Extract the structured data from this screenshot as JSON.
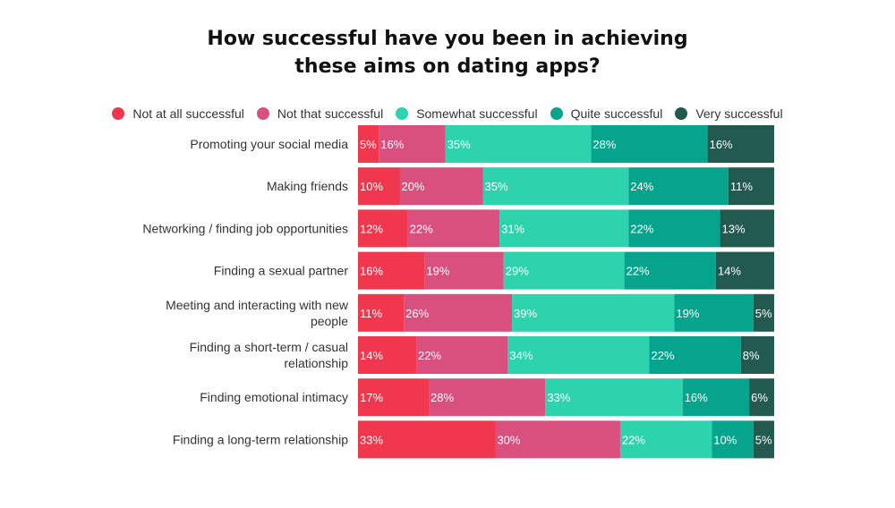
{
  "chart_data": {
    "type": "bar",
    "orientation": "horizontal",
    "stacked": true,
    "title_lines": [
      "How successful have you been in achieving",
      "these aims on dating apps?"
    ],
    "legend_position": "top",
    "grid": false,
    "xlim": [
      0,
      100
    ],
    "categories": [
      [
        "Promoting your social media"
      ],
      [
        "Making friends"
      ],
      [
        "Networking / finding job opportunities"
      ],
      [
        "Finding a sexual partner"
      ],
      [
        "Meeting and interacting with new",
        "people"
      ],
      [
        "Finding a short-term / casual",
        "relationship"
      ],
      [
        "Finding emotional intimacy"
      ],
      [
        "Finding a long-term relationship"
      ]
    ],
    "series": [
      {
        "name": "Not at all successful",
        "color": "#f0374d",
        "values": [
          5,
          10,
          12,
          16,
          11,
          14,
          17,
          33
        ],
        "labels": [
          "5%",
          "10%",
          "12%",
          "16%",
          "11%",
          "14%",
          "17%",
          "33%"
        ]
      },
      {
        "name": "Not that successful",
        "color": "#d94f7e",
        "values": [
          16,
          20,
          22,
          19,
          26,
          22,
          28,
          30
        ],
        "labels": [
          "16%",
          "20%",
          "22%",
          "19%",
          "26%",
          "22%",
          "28%",
          "30%"
        ]
      },
      {
        "name": "Somewhat successful",
        "color": "#2dd3ad",
        "values": [
          35,
          35,
          31,
          29,
          39,
          34,
          33,
          22
        ],
        "labels": [
          "35%",
          "35%",
          "31%",
          "29%",
          "39%",
          "34%",
          "33%",
          "22%"
        ]
      },
      {
        "name": "Quite successful",
        "color": "#06a48c",
        "values": [
          28,
          24,
          22,
          22,
          19,
          22,
          16,
          10
        ],
        "labels": [
          "28%",
          "24%",
          "22%",
          "22%",
          "19%",
          "22%",
          "16%",
          "10%"
        ]
      },
      {
        "name": "Very successful",
        "color": "#235a50",
        "values": [
          16,
          11,
          13,
          14,
          5,
          8,
          6,
          5
        ],
        "labels": [
          "16%",
          "11%",
          "13%",
          "14%",
          "5%",
          "8%",
          "6%",
          "5%"
        ]
      }
    ]
  }
}
